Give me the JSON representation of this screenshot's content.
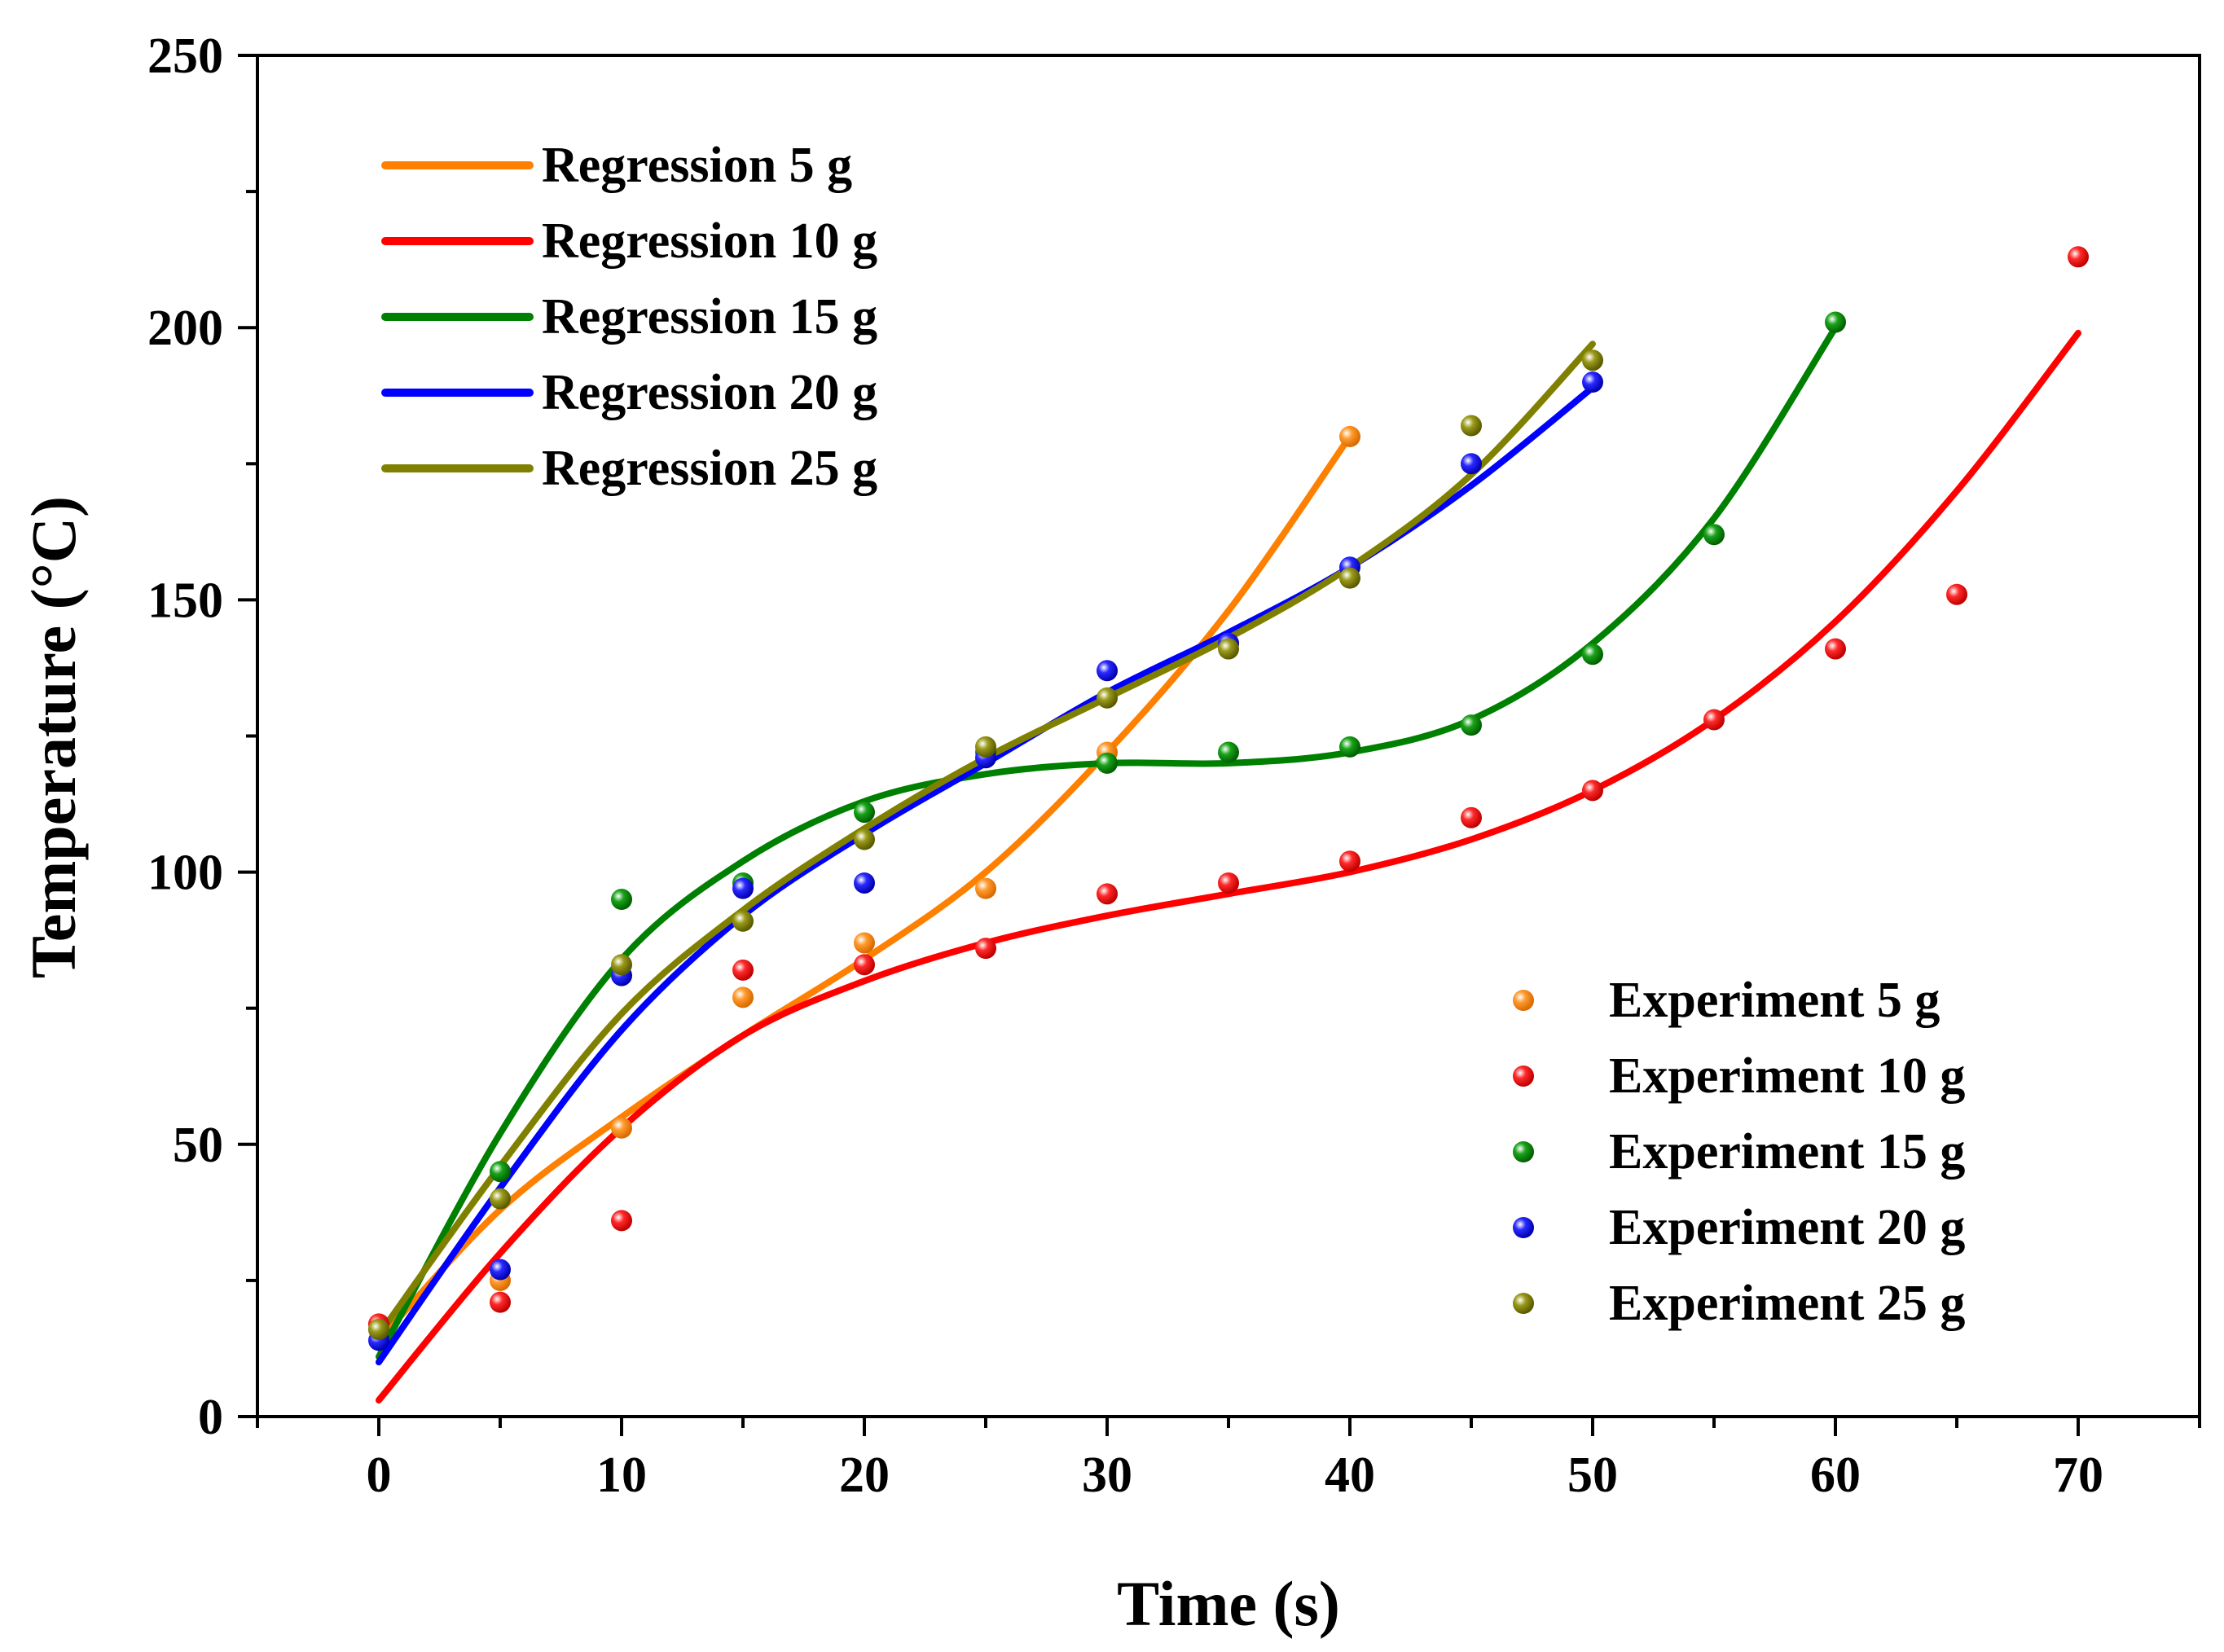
{
  "chart_data": {
    "type": "scatter",
    "title": "",
    "xlabel": "Time (s)",
    "ylabel": "Temperature (°C)",
    "xlim": [
      -5,
      75
    ],
    "ylim": [
      0,
      250
    ],
    "x_ticks": [
      0,
      10,
      20,
      30,
      40,
      50,
      60,
      70
    ],
    "y_ticks": [
      0,
      50,
      100,
      150,
      200,
      250
    ],
    "grid": false,
    "regression_series": [
      {
        "name": "Regression   5 g",
        "color": "#ff8000",
        "x": [
          0,
          5,
          10,
          15,
          20,
          25,
          30,
          35,
          40
        ],
        "y": [
          14,
          38,
          55,
          70,
          84,
          100,
          122,
          148,
          180
        ]
      },
      {
        "name": "Regression 10 g",
        "color": "#ff0000",
        "x": [
          0,
          5,
          10,
          15,
          20,
          25,
          30,
          35,
          40,
          45,
          50,
          55,
          60,
          65,
          70
        ],
        "y": [
          3,
          30,
          53,
          70,
          80,
          87,
          92,
          96,
          100,
          106,
          115,
          128,
          146,
          170,
          199
        ]
      },
      {
        "name": "Regression 15 g",
        "color": "#008000",
        "x": [
          0,
          5,
          10,
          15,
          20,
          25,
          30,
          35,
          40,
          45,
          50,
          55,
          60
        ],
        "y": [
          11,
          52,
          84,
          102,
          113,
          118,
          120,
          120,
          122,
          128,
          142,
          165,
          200
        ]
      },
      {
        "name": "Regression 20 g",
        "color": "#0000ff",
        "x": [
          0,
          5,
          10,
          15,
          20,
          25,
          30,
          35,
          40,
          45,
          50
        ],
        "y": [
          10,
          42,
          71,
          92,
          107,
          120,
          133,
          144,
          156,
          171,
          189
        ]
      },
      {
        "name": "Regression 25 g",
        "color": "#808000",
        "x": [
          0,
          5,
          10,
          15,
          20,
          25,
          30,
          35,
          40,
          45,
          50
        ],
        "y": [
          15,
          46,
          74,
          93,
          108,
          121,
          132,
          143,
          156,
          173,
          197
        ]
      }
    ],
    "experiment_series": [
      {
        "name": "Experiment   5 g",
        "color": "#ff8000",
        "x": [
          0,
          5,
          10,
          15,
          20,
          25,
          30,
          35,
          40
        ],
        "y": [
          17,
          25,
          53,
          77,
          87,
          97,
          122,
          142,
          180
        ]
      },
      {
        "name": "Experiment 10 g",
        "color": "#ff0000",
        "x": [
          0,
          5,
          10,
          15,
          20,
          25,
          30,
          35,
          40,
          45,
          50,
          55,
          60,
          65,
          70
        ],
        "y": [
          17,
          21,
          36,
          82,
          83,
          86,
          96,
          98,
          102,
          110,
          115,
          128,
          141,
          151,
          213
        ]
      },
      {
        "name": "Experiment 15 g",
        "color": "#008000",
        "x": [
          0,
          5,
          10,
          15,
          20,
          25,
          30,
          35,
          40,
          45,
          50,
          55,
          60
        ],
        "y": [
          16,
          45,
          95,
          98,
          111,
          122,
          120,
          122,
          123,
          127,
          140,
          162,
          201
        ]
      },
      {
        "name": "Experiment 20 g",
        "color": "#0000ff",
        "x": [
          0,
          5,
          10,
          15,
          20,
          25,
          30,
          35,
          40,
          45,
          50
        ],
        "y": [
          14,
          27,
          81,
          97,
          98,
          121,
          137,
          142,
          156,
          175,
          190
        ]
      },
      {
        "name": "Experiment 25 g",
        "color": "#808000",
        "x": [
          0,
          5,
          10,
          15,
          20,
          25,
          30,
          35,
          40,
          45,
          50
        ],
        "y": [
          16,
          40,
          83,
          91,
          106,
          123,
          132,
          141,
          154,
          182,
          194
        ]
      }
    ],
    "legend_regression_placement": "top-left",
    "legend_experiment_placement": "bottom-right"
  }
}
